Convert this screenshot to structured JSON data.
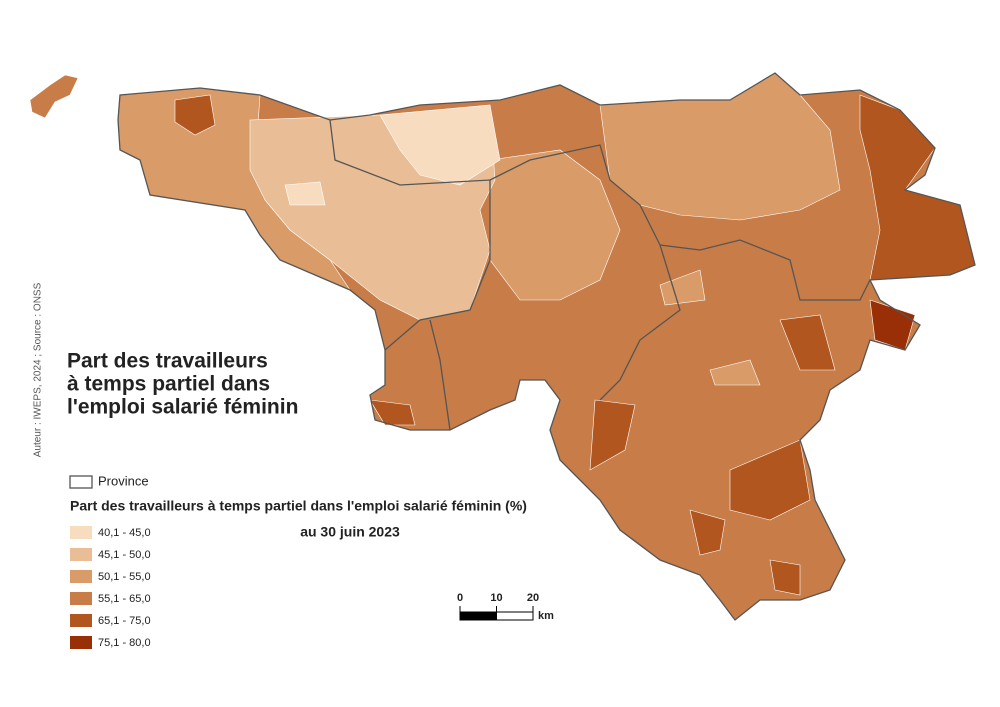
{
  "title": {
    "lines": [
      "Part des travailleurs",
      "à temps partiel dans",
      "l'emploi salarié féminin"
    ]
  },
  "credit": "Auteur : IWEPS, 2024 ; Source : ONSS",
  "legend": {
    "province": "Province",
    "title": "Part des travailleurs à temps partiel dans l'emploi salarié féminin (%)",
    "date": "au 30 juin 2023",
    "classes": [
      {
        "label": "40,1 - 45,0",
        "color": "#f7dcc0"
      },
      {
        "label": "45,1 - 50,0",
        "color": "#e9bd95"
      },
      {
        "label": "50,1 - 55,0",
        "color": "#d99b68"
      },
      {
        "label": "55,1 - 65,0",
        "color": "#c87c47"
      },
      {
        "label": "65,1 - 75,0",
        "color": "#b2561f"
      },
      {
        "label": "75,1 - 80,0",
        "color": "#992f06"
      }
    ]
  },
  "scale": {
    "ticks": [
      0,
      10,
      20
    ],
    "unit": "km"
  }
}
